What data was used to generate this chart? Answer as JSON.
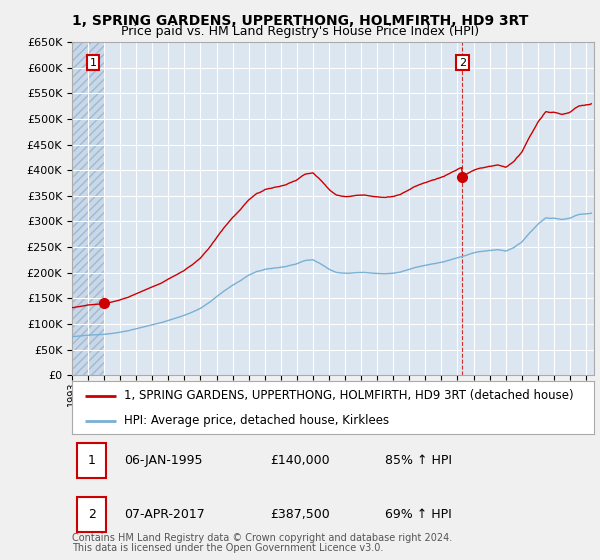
{
  "title": "1, SPRING GARDENS, UPPERTHONG, HOLMFIRTH, HD9 3RT",
  "subtitle": "Price paid vs. HM Land Registry's House Price Index (HPI)",
  "ylim": [
    0,
    650000
  ],
  "yticks": [
    0,
    50000,
    100000,
    150000,
    200000,
    250000,
    300000,
    350000,
    400000,
    450000,
    500000,
    550000,
    600000,
    650000
  ],
  "xlim_start": 1993.0,
  "xlim_end": 2025.5,
  "background_color": "#f0f0f0",
  "plot_bg_color": "#dce6f1",
  "hatch_color": "#b8c8dc",
  "grid_color": "#ffffff",
  "red_line_color": "#cc0000",
  "blue_line_color": "#7ab0d4",
  "sale1_x": 1995.02,
  "sale1_y": 140000,
  "sale2_x": 2017.27,
  "sale2_y": 387500,
  "legend_label_red": "1, SPRING GARDENS, UPPERTHONG, HOLMFIRTH, HD9 3RT (detached house)",
  "legend_label_blue": "HPI: Average price, detached house, Kirklees",
  "footer_line1": "Contains HM Land Registry data © Crown copyright and database right 2024.",
  "footer_line2": "This data is licensed under the Open Government Licence v3.0.",
  "table_row1": [
    "1",
    "06-JAN-1995",
    "£140,000",
    "85% ↑ HPI"
  ],
  "table_row2": [
    "2",
    "07-APR-2017",
    "£387,500",
    "69% ↑ HPI"
  ],
  "title_fontsize": 10,
  "subtitle_fontsize": 9,
  "tick_fontsize": 8,
  "legend_fontsize": 8.5,
  "footer_fontsize": 7,
  "table_fontsize": 9
}
